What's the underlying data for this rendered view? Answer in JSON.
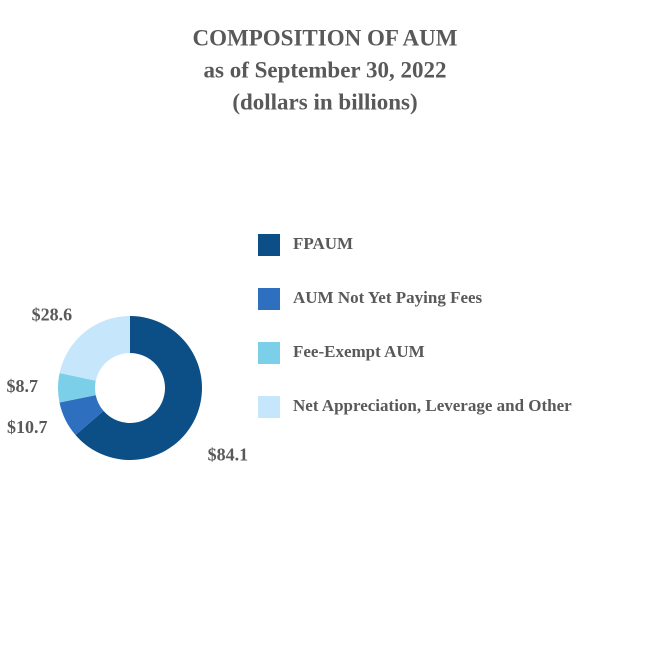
{
  "chart_data": {
    "type": "donut",
    "title": "COMPOSITION OF AUM",
    "subtitle": "as of September 30, 2022",
    "units_note": "(dollars in billions)",
    "categories": [
      "FPAUM",
      "AUM Not Yet Paying Fees",
      "Fee-Exempt AUM",
      "Net Appreciation, Leverage and Other"
    ],
    "values": [
      84.1,
      10.7,
      8.7,
      28.6
    ],
    "value_labels": [
      "$84.1",
      "$10.7",
      "$8.7",
      "$28.6"
    ],
    "colors": [
      "#0b4f86",
      "#2e6fbf",
      "#7ccfe8",
      "#c5e6fb"
    ],
    "legend": "right"
  }
}
